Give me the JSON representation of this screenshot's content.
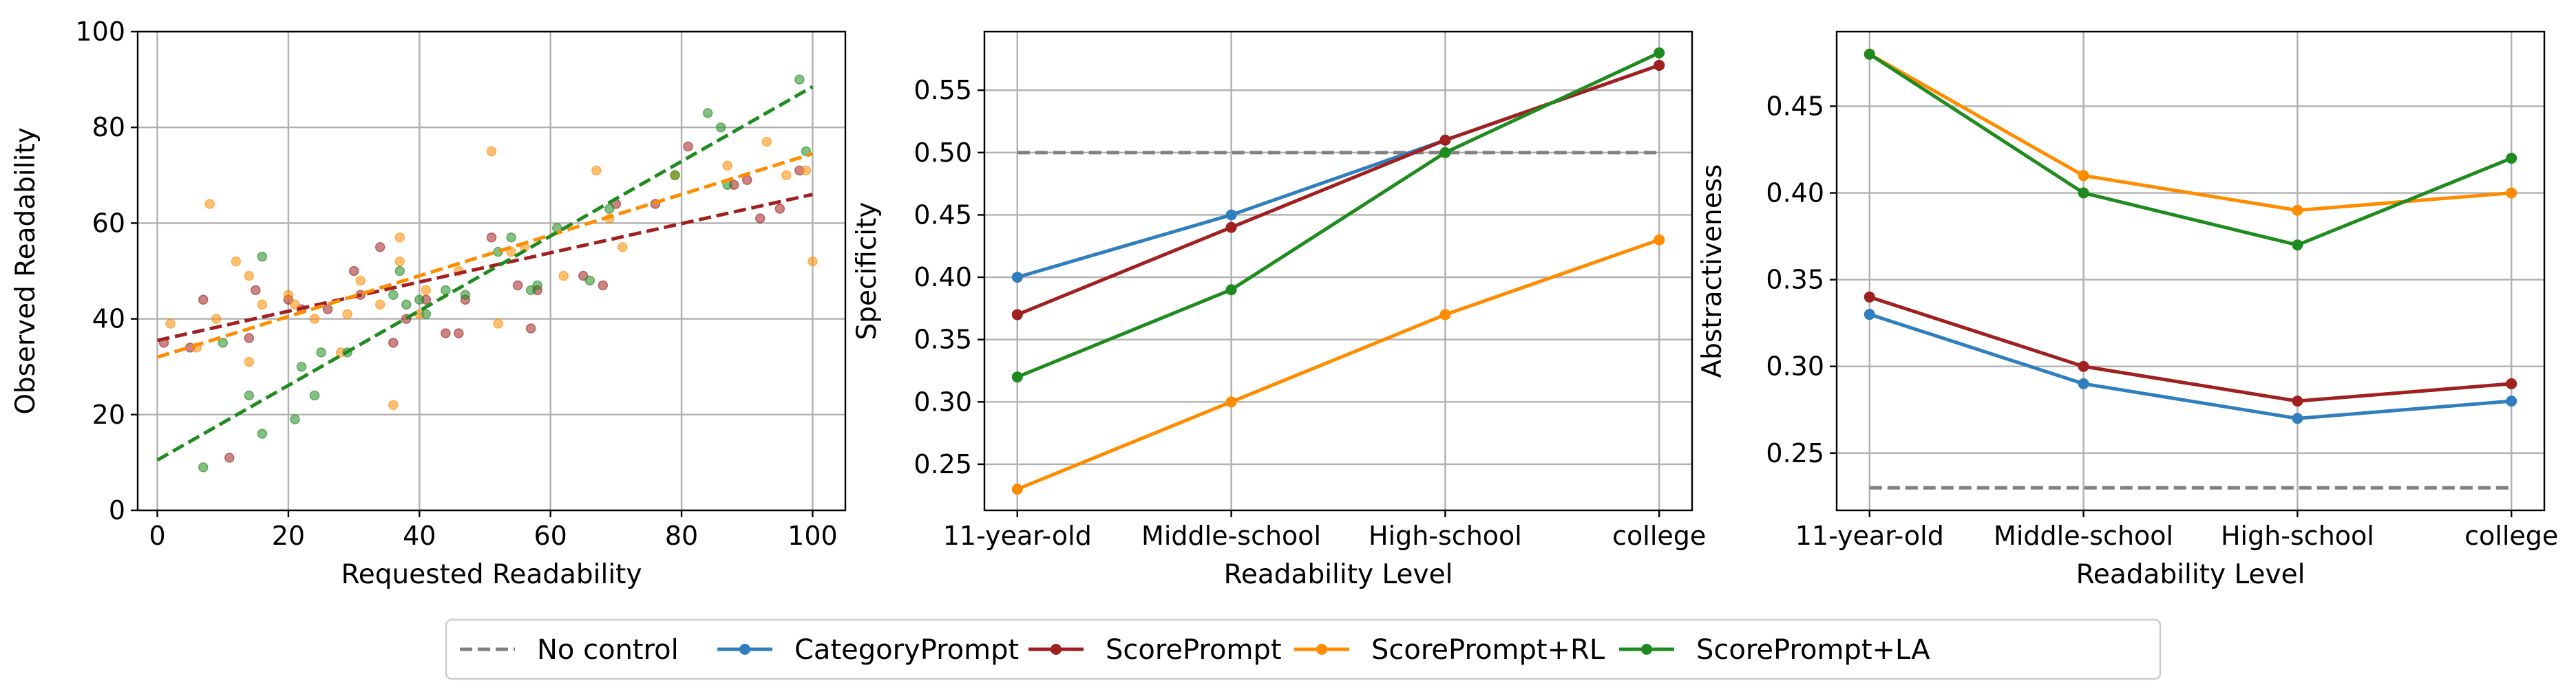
{
  "colors": {
    "no_control": "#808080",
    "category_prompt": "#2f7fbf",
    "score_prompt": "#a02020",
    "score_prompt_rl": "#ff8c00",
    "score_prompt_la": "#1f8b1f",
    "grid": "#b0b0b0"
  },
  "legend": {
    "entries": [
      {
        "label": "No control",
        "color": "#808080",
        "style": "dashed"
      },
      {
        "label": "CategoryPrompt",
        "color": "#2f7fbf",
        "style": "line-marker"
      },
      {
        "label": "ScorePrompt",
        "color": "#a02020",
        "style": "line-marker"
      },
      {
        "label": "ScorePrompt+RL",
        "color": "#ff8c00",
        "style": "line-marker"
      },
      {
        "label": "ScorePrompt+LA",
        "color": "#1f8b1f",
        "style": "line-marker"
      }
    ]
  },
  "chart_data": [
    {
      "type": "scatter",
      "xlabel": "Requested Readability",
      "ylabel": "Observed Readability",
      "xlim": [
        -3,
        105
      ],
      "ylim": [
        0,
        100
      ],
      "xticks": [
        0,
        20,
        40,
        60,
        80,
        100
      ],
      "yticks": [
        0,
        20,
        40,
        60,
        80,
        100
      ],
      "grid": true,
      "series": [
        {
          "color": "#a02020",
          "points": [
            [
              1,
              35
            ],
            [
              5,
              34
            ],
            [
              7,
              44
            ],
            [
              11,
              11
            ],
            [
              14,
              36
            ],
            [
              15,
              46
            ],
            [
              20,
              44
            ],
            [
              22,
              42
            ],
            [
              26,
              42
            ],
            [
              30,
              50
            ],
            [
              31,
              45
            ],
            [
              34,
              55
            ],
            [
              36,
              35
            ],
            [
              38,
              40
            ],
            [
              41,
              44
            ],
            [
              44,
              37
            ],
            [
              46,
              37
            ],
            [
              47,
              44
            ],
            [
              51,
              57
            ],
            [
              55,
              47
            ],
            [
              57,
              38
            ],
            [
              58,
              46
            ],
            [
              65,
              49
            ],
            [
              68,
              47
            ],
            [
              70,
              64
            ],
            [
              76,
              64
            ],
            [
              81,
              76
            ],
            [
              88,
              68
            ],
            [
              90,
              69
            ],
            [
              92,
              61
            ],
            [
              95,
              63
            ],
            [
              98,
              71
            ]
          ],
          "trend": {
            "x": [
              0,
              100
            ],
            "y": [
              35.5,
              66
            ]
          }
        },
        {
          "color": "#ff8c00",
          "points": [
            [
              2,
              39
            ],
            [
              6,
              34
            ],
            [
              8,
              64
            ],
            [
              9,
              40
            ],
            [
              12,
              52
            ],
            [
              14,
              49
            ],
            [
              14,
              31
            ],
            [
              16,
              43
            ],
            [
              20,
              45
            ],
            [
              21,
              43
            ],
            [
              24,
              40
            ],
            [
              28,
              33
            ],
            [
              29,
              41
            ],
            [
              31,
              48
            ],
            [
              34,
              43
            ],
            [
              36,
              22
            ],
            [
              37,
              57
            ],
            [
              37,
              52
            ],
            [
              40,
              41
            ],
            [
              41,
              46
            ],
            [
              46,
              50
            ],
            [
              51,
              75
            ],
            [
              52,
              39
            ],
            [
              54,
              54
            ],
            [
              56,
              55
            ],
            [
              62,
              49
            ],
            [
              67,
              71
            ],
            [
              69,
              61
            ],
            [
              71,
              55
            ],
            [
              79,
              70
            ],
            [
              87,
              72
            ],
            [
              93,
              77
            ],
            [
              96,
              70
            ],
            [
              99,
              71
            ],
            [
              100,
              52
            ]
          ],
          "trend": {
            "x": [
              0,
              100
            ],
            "y": [
              32,
              74.5
            ]
          }
        },
        {
          "color": "#1f8b1f",
          "points": [
            [
              7,
              9
            ],
            [
              10,
              35
            ],
            [
              14,
              24
            ],
            [
              16,
              16
            ],
            [
              16,
              53
            ],
            [
              21,
              19
            ],
            [
              22,
              30
            ],
            [
              24,
              24
            ],
            [
              25,
              33
            ],
            [
              29,
              33
            ],
            [
              36,
              45
            ],
            [
              37,
              50
            ],
            [
              38,
              43
            ],
            [
              40,
              44
            ],
            [
              41,
              41
            ],
            [
              44,
              46
            ],
            [
              47,
              45
            ],
            [
              52,
              54
            ],
            [
              54,
              57
            ],
            [
              57,
              46
            ],
            [
              58,
              47
            ],
            [
              61,
              59
            ],
            [
              66,
              48
            ],
            [
              69,
              63
            ],
            [
              79,
              70
            ],
            [
              84,
              83
            ],
            [
              86,
              80
            ],
            [
              87,
              68
            ],
            [
              98,
              90
            ],
            [
              99,
              75
            ]
          ],
          "trend": {
            "x": [
              0,
              100
            ],
            "y": [
              10.5,
              88.5
            ]
          }
        }
      ]
    },
    {
      "type": "line",
      "categories": [
        "11-year-old",
        "Middle-school",
        "High-school",
        "college"
      ],
      "xlabel": "Readability Level",
      "ylabel": "Specificity",
      "ylim": [
        0.213,
        0.597
      ],
      "yticks": [
        0.25,
        0.3,
        0.35,
        0.4,
        0.45,
        0.5,
        0.55
      ],
      "ytick_labels": [
        "0.25",
        "0.30",
        "0.35",
        "0.40",
        "0.45",
        "0.50",
        "0.55"
      ],
      "grid": true,
      "series": [
        {
          "name": "No control",
          "color": "#808080",
          "dashed": true,
          "values": [
            0.5,
            0.5,
            0.5,
            0.5
          ]
        },
        {
          "name": "CategoryPrompt",
          "color": "#2f7fbf",
          "values": [
            0.4,
            0.45,
            0.51,
            0.57
          ]
        },
        {
          "name": "ScorePrompt",
          "color": "#a02020",
          "values": [
            0.37,
            0.44,
            0.51,
            0.57
          ]
        },
        {
          "name": "ScorePrompt+RL",
          "color": "#ff8c00",
          "values": [
            0.23,
            0.3,
            0.37,
            0.43
          ]
        },
        {
          "name": "ScorePrompt+LA",
          "color": "#1f8b1f",
          "values": [
            0.32,
            0.39,
            0.5,
            0.58
          ]
        }
      ]
    },
    {
      "type": "line",
      "categories": [
        "11-year-old",
        "Middle-school",
        "High-school",
        "college"
      ],
      "xlabel": "Readability Level",
      "ylabel": "Abstractiveness",
      "ylim": [
        0.217,
        0.493
      ],
      "yticks": [
        0.25,
        0.3,
        0.35,
        0.4,
        0.45
      ],
      "ytick_labels": [
        "0.25",
        "0.30",
        "0.35",
        "0.40",
        "0.45"
      ],
      "grid": true,
      "series": [
        {
          "name": "No control",
          "color": "#808080",
          "dashed": true,
          "values": [
            0.23,
            0.23,
            0.23,
            0.23
          ]
        },
        {
          "name": "CategoryPrompt",
          "color": "#2f7fbf",
          "values": [
            0.33,
            0.29,
            0.27,
            0.28
          ]
        },
        {
          "name": "ScorePrompt",
          "color": "#a02020",
          "values": [
            0.34,
            0.3,
            0.28,
            0.29
          ]
        },
        {
          "name": "ScorePrompt+RL",
          "color": "#ff8c00",
          "values": [
            0.48,
            0.41,
            0.39,
            0.4
          ]
        },
        {
          "name": "ScorePrompt+LA",
          "color": "#1f8b1f",
          "values": [
            0.48,
            0.4,
            0.37,
            0.42
          ]
        }
      ]
    }
  ]
}
